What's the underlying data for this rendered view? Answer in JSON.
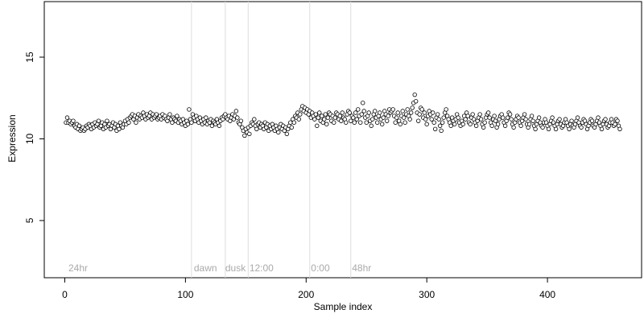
{
  "chart_data": {
    "type": "scatter",
    "x_label": "Sample index",
    "y_label": "Expression",
    "xlim": [
      -17,
      478
    ],
    "ylim": [
      1.5,
      18.4
    ],
    "xticks": [
      0,
      100,
      200,
      300,
      400
    ],
    "yticks": [
      5,
      10,
      15
    ],
    "vlines": [
      105,
      133,
      152,
      203,
      237
    ],
    "annotations": [
      {
        "label": "24hr",
        "x": 3
      },
      {
        "label": "dawn",
        "x": 107
      },
      {
        "label": "dusk",
        "x": 133
      },
      {
        "label": "12:00",
        "x": 153
      },
      {
        "label": "0:00",
        "x": 204
      },
      {
        "label": "48hr",
        "x": 238
      }
    ],
    "series": [
      {
        "color": "#ffffff",
        "x": [
          1,
          2,
          3,
          4,
          5,
          6,
          7,
          8,
          9,
          10,
          11,
          12,
          13,
          14,
          15,
          16,
          17,
          18,
          19,
          20,
          21,
          22,
          23,
          24,
          25,
          26,
          27,
          28,
          29,
          30,
          31,
          32,
          33,
          34,
          35,
          36,
          37,
          38,
          39,
          40,
          41,
          42,
          43,
          44,
          45,
          46,
          47,
          48,
          49,
          50,
          51,
          52,
          53,
          54,
          55,
          56,
          57,
          58,
          59,
          60,
          61,
          62,
          63,
          64,
          65,
          66,
          67,
          68,
          69,
          70,
          71,
          72,
          73,
          74,
          75,
          76,
          77,
          78,
          79,
          80,
          81,
          82,
          83,
          84,
          85,
          86,
          87,
          88,
          89,
          90,
          91,
          92,
          93,
          94,
          95,
          96,
          97,
          98,
          99,
          100,
          101,
          102,
          103,
          104,
          105,
          106,
          107,
          108,
          109,
          110,
          111,
          112,
          113,
          114,
          115,
          116,
          117,
          118,
          119,
          120,
          121,
          122,
          123,
          124,
          125,
          126,
          127,
          128,
          129,
          130,
          131,
          132,
          133,
          134,
          135,
          136,
          137,
          138,
          139,
          140,
          141,
          142,
          143,
          144,
          145,
          146,
          147,
          148,
          149,
          150,
          151,
          152,
          153,
          154,
          155,
          156,
          157,
          158,
          159,
          160,
          161,
          162,
          163,
          164,
          165,
          166,
          167,
          168,
          169,
          170,
          171,
          172,
          173,
          174,
          175,
          176,
          177,
          178,
          179,
          180,
          181,
          182,
          183,
          184,
          185,
          186,
          187,
          188,
          189,
          190,
          191,
          192,
          193,
          194,
          195,
          196,
          197,
          198,
          199,
          200,
          201,
          202,
          203,
          204,
          205,
          206,
          207,
          208,
          209,
          210,
          211,
          212,
          213,
          214,
          215,
          216,
          217,
          218,
          219,
          220,
          221,
          222,
          223,
          224,
          225,
          226,
          227,
          228,
          229,
          230,
          231,
          232,
          233,
          234,
          235,
          236,
          237,
          238,
          239,
          240,
          241,
          242,
          243,
          244,
          245,
          246,
          247,
          248,
          249,
          250,
          251,
          252,
          253,
          254,
          255,
          256,
          257,
          258,
          259,
          260,
          261,
          262,
          263,
          264,
          265,
          266,
          267,
          268,
          269,
          270,
          271,
          272,
          273,
          274,
          275,
          276,
          277,
          278,
          279,
          280,
          281,
          282,
          283,
          284,
          285,
          286,
          287,
          288,
          289,
          290,
          291,
          292,
          293,
          294,
          295,
          296,
          297,
          298,
          299,
          300,
          301,
          302,
          303,
          304,
          305,
          306,
          307,
          308,
          309,
          310,
          311,
          312,
          313,
          314,
          315,
          316,
          317,
          318,
          319,
          320,
          321,
          322,
          323,
          324,
          325,
          326,
          327,
          328,
          329,
          330,
          331,
          332,
          333,
          334,
          335,
          336,
          337,
          338,
          339,
          340,
          341,
          342,
          343,
          344,
          345,
          346,
          347,
          348,
          349,
          350,
          351,
          352,
          353,
          354,
          355,
          356,
          357,
          358,
          359,
          360,
          361,
          362,
          363,
          364,
          365,
          366,
          367,
          368,
          369,
          370,
          371,
          372,
          373,
          374,
          375,
          376,
          377,
          378,
          379,
          380,
          381,
          382,
          383,
          384,
          385,
          386,
          387,
          388,
          389,
          390,
          391,
          392,
          393,
          394,
          395,
          396,
          397,
          398,
          399,
          400,
          401,
          402,
          403,
          404,
          405,
          406,
          407,
          408,
          409,
          410,
          411,
          412,
          413,
          414,
          415,
          416,
          417,
          418,
          419,
          420,
          421,
          422,
          423,
          424,
          425,
          426,
          427,
          428,
          429,
          430,
          431,
          432,
          433,
          434,
          435,
          436,
          437,
          438,
          439,
          440,
          441,
          442,
          443,
          444,
          445,
          446,
          447,
          448,
          449,
          450,
          451,
          452,
          453,
          454,
          455,
          456,
          457,
          458,
          459,
          460
        ],
        "values": [
          11.0,
          11.3,
          11.0,
          11.1,
          10.9,
          11.0,
          11.1,
          10.8,
          10.7,
          10.9,
          10.6,
          10.8,
          10.5,
          10.6,
          10.7,
          10.5,
          10.6,
          10.8,
          10.7,
          10.9,
          10.8,
          10.6,
          10.9,
          10.7,
          11.0,
          10.8,
          10.9,
          11.1,
          10.7,
          10.8,
          11.0,
          10.6,
          10.9,
          10.7,
          11.1,
          10.8,
          10.9,
          10.6,
          10.8,
          11.0,
          10.7,
          10.9,
          10.5,
          10.8,
          10.6,
          11.0,
          10.8,
          10.7,
          10.9,
          11.1,
          10.9,
          11.2,
          11.0,
          11.3,
          11.4,
          11.5,
          11.2,
          11.4,
          11.0,
          11.3,
          11.5,
          11.2,
          11.4,
          11.3,
          11.6,
          11.4,
          11.2,
          11.5,
          11.3,
          11.4,
          11.6,
          11.2,
          11.5,
          11.3,
          11.4,
          11.5,
          11.2,
          11.3,
          11.4,
          11.2,
          11.5,
          11.3,
          11.4,
          11.2,
          11.1,
          11.3,
          11.5,
          11.2,
          11.0,
          11.3,
          11.2,
          11.1,
          11.4,
          11.0,
          11.2,
          11.1,
          10.9,
          11.2,
          11.0,
          10.8,
          11.1,
          10.9,
          11.8,
          11.2,
          11.0,
          11.5,
          11.3,
          11.1,
          11.4,
          11.2,
          11.0,
          11.3,
          11.1,
          10.9,
          11.2,
          11.0,
          11.3,
          10.9,
          11.1,
          11.0,
          11.2,
          10.8,
          11.1,
          11.0,
          10.9,
          11.2,
          11.0,
          10.8,
          11.1,
          11.3,
          11.2,
          11.4,
          11.5,
          11.3,
          11.2,
          11.4,
          11.1,
          11.3,
          11.5,
          11.2,
          11.4,
          11.7,
          11.3,
          11.0,
          10.9,
          11.1,
          10.7,
          10.5,
          10.2,
          10.6,
          10.4,
          10.7,
          10.3,
          10.8,
          11.0,
          10.9,
          11.2,
          10.8,
          10.6,
          10.9,
          11.0,
          10.7,
          10.9,
          10.8,
          10.6,
          11.0,
          10.7,
          10.9,
          10.5,
          10.8,
          10.6,
          10.9,
          10.7,
          10.5,
          10.8,
          10.6,
          10.4,
          10.7,
          10.9,
          10.6,
          10.8,
          10.5,
          10.7,
          10.3,
          10.6,
          10.8,
          11.0,
          10.7,
          11.2,
          11.0,
          11.4,
          11.3,
          11.6,
          11.2,
          11.5,
          11.8,
          12.0,
          11.7,
          11.9,
          11.6,
          11.8,
          11.5,
          11.7,
          11.3,
          11.6,
          11.4,
          11.2,
          11.5,
          10.8,
          11.3,
          11.6,
          11.1,
          11.4,
          11.0,
          11.2,
          11.5,
          10.9,
          11.3,
          11.6,
          11.5,
          11.1,
          11.4,
          11.0,
          11.3,
          11.6,
          11.5,
          11.2,
          11.4,
          11.1,
          11.6,
          11.3,
          11.2,
          11.0,
          11.5,
          11.7,
          11.6,
          11.1,
          11.4,
          11.3,
          11.0,
          11.6,
          11.2,
          11.8,
          11.4,
          11.0,
          11.5,
          12.2,
          11.7,
          11.3,
          11.0,
          11.4,
          11.6,
          11.1,
          10.8,
          11.2,
          11.5,
          11.7,
          11.3,
          11.0,
          11.4,
          11.6,
          11.2,
          10.9,
          11.3,
          11.7,
          11.5,
          11.1,
          11.4,
          11.8,
          11.6,
          11.7,
          11.8,
          11.4,
          11.0,
          11.3,
          11.6,
          11.1,
          10.9,
          11.4,
          11.7,
          11.3,
          11.0,
          11.5,
          11.8,
          11.4,
          11.2,
          11.6,
          11.9,
          12.2,
          12.7,
          12.3,
          11.6,
          11.1,
          11.5,
          11.9,
          11.8,
          11.3,
          11.6,
          11.2,
          10.9,
          11.4,
          11.7,
          11.5,
          11.2,
          11.6,
          11.0,
          10.6,
          11.3,
          11.5,
          11.2,
          10.8,
          10.5,
          11.0,
          11.3,
          11.6,
          11.8,
          11.4,
          11.2,
          11.0,
          10.8,
          11.3,
          11.1,
          10.9,
          11.2,
          11.5,
          11.3,
          11.0,
          10.8,
          11.1,
          10.9,
          11.4,
          11.2,
          11.6,
          11.4,
          11.0,
          10.9,
          11.3,
          11.5,
          11.2,
          11.0,
          10.8,
          11.1,
          11.3,
          11.5,
          11.2,
          10.9,
          10.7,
          11.0,
          11.3,
          11.5,
          11.6,
          11.3,
          11.0,
          10.8,
          11.2,
          11.4,
          11.1,
          10.7,
          10.9,
          11.2,
          11.4,
          11.5,
          11.3,
          11.0,
          10.8,
          11.1,
          11.3,
          11.6,
          11.5,
          11.2,
          10.9,
          10.7,
          11.0,
          11.2,
          11.4,
          11.3,
          11.0,
          10.8,
          11.1,
          11.3,
          11.5,
          11.2,
          10.9,
          10.7,
          10.9,
          11.2,
          11.4,
          11.1,
          10.8,
          10.6,
          10.9,
          11.1,
          11.3,
          11.0,
          10.8,
          10.7,
          11.0,
          11.2,
          11.0,
          10.8,
          10.6,
          10.9,
          11.1,
          11.3,
          11.0,
          10.8,
          10.6,
          10.9,
          11.1,
          11.2,
          10.9,
          10.7,
          10.8,
          11.0,
          11.2,
          11.0,
          10.8,
          10.6,
          10.9,
          11.1,
          10.8,
          10.7,
          10.9,
          11.1,
          11.3,
          11.0,
          10.8,
          10.7,
          11.0,
          11.2,
          11.1,
          10.9,
          10.6,
          10.8,
          11.0,
          11.2,
          11.1,
          10.8,
          10.7,
          10.9,
          11.1,
          11.3,
          11.0,
          10.8,
          10.6,
          10.9,
          11.1,
          11.2,
          10.9,
          10.7,
          10.8,
          11.0,
          11.2,
          11.0,
          10.8,
          10.9,
          11.2,
          11.1,
          10.8,
          10.6
        ]
      }
    ]
  }
}
